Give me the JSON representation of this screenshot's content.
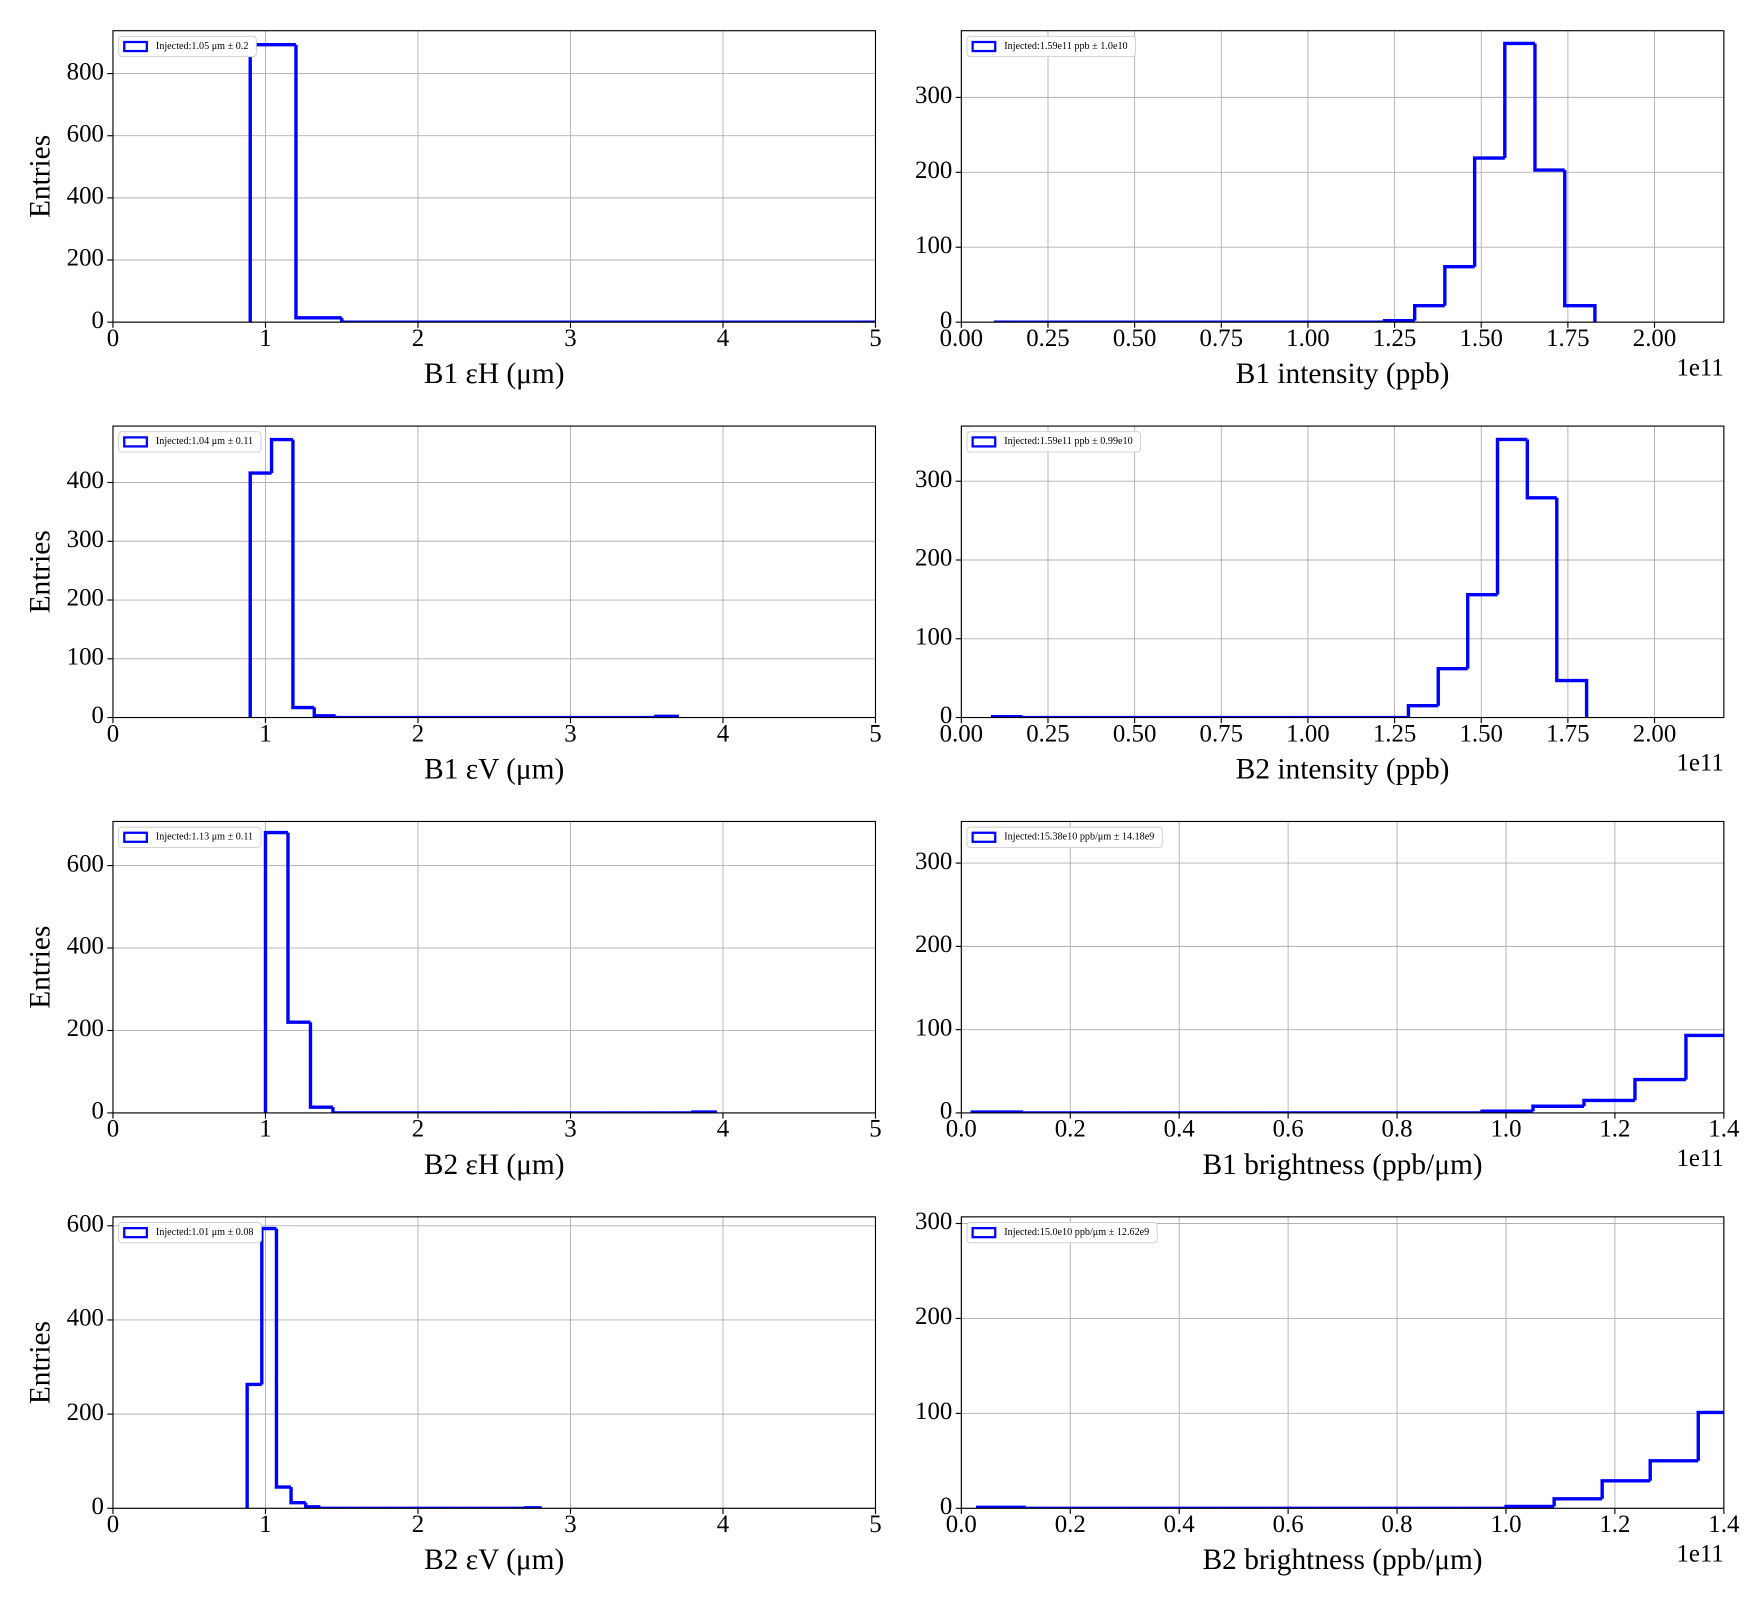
{
  "chart_data": [
    {
      "type": "histogram",
      "xlabel": "B1 εH (μm)",
      "ylabel": "Entries",
      "grid": true,
      "legend": "upper left",
      "xlim": [
        0,
        5
      ],
      "ylim": [
        0,
        938
      ],
      "xticks": [
        0,
        1,
        2,
        3,
        4,
        5
      ],
      "yticks": [
        0,
        200,
        400,
        600,
        800
      ],
      "bins": [
        0.9,
        1.2,
        1.5,
        5.0
      ],
      "series": [
        {
          "name": "Injected:1.05 μm ± 0.2",
          "color": "#0000ff",
          "values": [
            893,
            14,
            0
          ]
        }
      ]
    },
    {
      "type": "histogram",
      "xlabel": "B1 intensity (ppb)",
      "x_offset_label": "1e11",
      "grid": true,
      "legend": "upper left",
      "xlim": [
        0,
        2.2
      ],
      "ylim": [
        0,
        389
      ],
      "xticks": [
        {
          "value": 0,
          "label": "0.00"
        },
        0.25,
        {
          "value": 0.5,
          "label": "0.50"
        },
        0.75,
        {
          "value": 1,
          "label": "1.00"
        },
        1.25,
        {
          "value": 1.5,
          "label": "1.50"
        },
        1.75,
        {
          "value": 2,
          "label": "2.00"
        }
      ],
      "yticks": [
        0,
        100,
        200,
        300
      ],
      "bins": [
        0.094,
        0.181,
        0.267,
        0.354,
        0.441,
        0.528,
        0.614,
        0.701,
        0.788,
        0.874,
        0.961,
        1.048,
        1.134,
        1.221,
        1.308,
        1.395,
        1.481,
        1.568,
        1.655,
        1.741,
        1.828
      ],
      "series": [
        {
          "name": "Injected:1.59e11 ppb ± 1.0e10",
          "color": "#0000ff",
          "values": [
            0,
            0,
            0,
            0,
            0,
            0,
            0,
            0,
            0,
            0,
            0,
            0,
            0,
            2,
            22,
            74,
            219,
            372,
            203,
            22
          ]
        }
      ]
    },
    {
      "type": "histogram",
      "xlabel": "B1 εV (μm)",
      "ylabel": "Entries",
      "grid": true,
      "legend": "upper left",
      "xlim": [
        0,
        5
      ],
      "ylim": [
        0,
        496
      ],
      "xticks": [
        0,
        1,
        2,
        3,
        4,
        5
      ],
      "yticks": [
        0,
        100,
        200,
        300,
        400
      ],
      "bins": [
        0.9,
        1.04,
        1.18,
        1.32,
        1.46,
        1.6,
        1.74,
        1.88,
        2.02,
        2.16,
        2.3,
        2.44,
        2.58,
        2.72,
        2.86,
        3.0,
        3.14,
        3.28,
        3.42,
        3.56,
        3.7
      ],
      "series": [
        {
          "name": "Injected:1.04 μm ± 0.11",
          "color": "#0000ff",
          "values": [
            416,
            473,
            17,
            3,
            0,
            0,
            0,
            0,
            0,
            0,
            0,
            0,
            0,
            0,
            0,
            0,
            0,
            0,
            0,
            2
          ]
        }
      ]
    },
    {
      "type": "histogram",
      "xlabel": "B2 intensity (ppb)",
      "x_offset_label": "1e11",
      "grid": true,
      "legend": "upper left",
      "xlim": [
        0,
        2.2
      ],
      "ylim": [
        0,
        370
      ],
      "xticks": [
        {
          "value": 0,
          "label": "0.00"
        },
        0.25,
        {
          "value": 0.5,
          "label": "0.50"
        },
        0.75,
        {
          "value": 1,
          "label": "1.00"
        },
        1.25,
        {
          "value": 1.5,
          "label": "1.50"
        },
        1.75,
        {
          "value": 2,
          "label": "2.00"
        }
      ],
      "yticks": [
        0,
        100,
        200,
        300
      ],
      "bins": [
        0.09,
        0.176,
        0.261,
        0.347,
        0.433,
        0.519,
        0.604,
        0.69,
        0.776,
        0.861,
        0.947,
        1.033,
        1.118,
        1.204,
        1.29,
        1.376,
        1.461,
        1.547,
        1.633,
        1.718,
        1.804
      ],
      "series": [
        {
          "name": "Injected:1.59e11 ppb ± 0.99e10",
          "color": "#0000ff",
          "values": [
            1,
            0,
            0,
            0,
            0,
            0,
            0,
            0,
            0,
            0,
            0,
            0,
            0,
            0,
            15,
            62,
            156,
            353,
            279,
            47
          ]
        }
      ]
    },
    {
      "type": "histogram",
      "xlabel": "B2 εH (μm)",
      "ylabel": "Entries",
      "grid": true,
      "legend": "upper left",
      "xlim": [
        0,
        5
      ],
      "ylim": [
        0,
        707
      ],
      "xticks": [
        0,
        1,
        2,
        3,
        4,
        5
      ],
      "yticks": [
        0,
        200,
        400,
        600
      ],
      "bins": [
        1.0,
        1.1475,
        1.295,
        1.4425,
        1.59,
        1.7375,
        1.885,
        2.0325,
        2.18,
        2.3275,
        2.475,
        2.6225,
        2.77,
        2.9175,
        3.065,
        3.2125,
        3.36,
        3.5075,
        3.655,
        3.8025,
        3.95
      ],
      "series": [
        {
          "name": "Injected:1.13 μm ± 0.11",
          "color": "#0000ff",
          "values": [
            680,
            220,
            14,
            0,
            0,
            0,
            0,
            0,
            0,
            0,
            0,
            0,
            0,
            0,
            0,
            0,
            0,
            0,
            0,
            2
          ]
        }
      ]
    },
    {
      "type": "histogram",
      "xlabel": "B1 brightness (ppb/μm)",
      "x_offset_label": "1e11",
      "grid": true,
      "legend": "upper left",
      "xlim": [
        0,
        1.4
      ],
      "ylim": [
        0,
        350
      ],
      "xticks": [
        {
          "value": 0,
          "label": "0.0"
        },
        0.2,
        0.4,
        0.6,
        0.8,
        {
          "value": 1,
          "label": "1.0"
        },
        1.2,
        1.4
      ],
      "yticks": [
        0,
        100,
        200,
        300
      ],
      "bins": [
        0.02,
        0.1136,
        0.2072,
        0.3008,
        0.3944,
        0.488,
        0.5816,
        0.6752,
        0.7688,
        0.8624,
        0.956,
        1.0496,
        1.1432,
        1.2368,
        1.3304,
        1.424
      ],
      "series": [
        {
          "name": "Injected:15.38e10 ppb/μm ± 14.18e9",
          "color": "#0000ff",
          "values": [
            1,
            0,
            0,
            0,
            0,
            0,
            0,
            0,
            0,
            0,
            2,
            8,
            15,
            40,
            93
          ]
        }
      ]
    },
    {
      "type": "histogram",
      "xlabel": "B2 εV (μm)",
      "ylabel": "Entries",
      "grid": true,
      "legend": "upper left",
      "xlim": [
        0,
        5
      ],
      "ylim": [
        0,
        619
      ],
      "xticks": [
        0,
        1,
        2,
        3,
        4,
        5
      ],
      "yticks": [
        0,
        200,
        400,
        600
      ],
      "bins": [
        0.88,
        0.976,
        1.072,
        1.168,
        1.264,
        1.36,
        1.456,
        1.552,
        1.648,
        1.744,
        1.84,
        1.936,
        2.032,
        2.128,
        2.224,
        2.32,
        2.416,
        2.512,
        2.608,
        2.704,
        2.8
      ],
      "series": [
        {
          "name": "Injected:1.01 μm ± 0.08",
          "color": "#0000ff",
          "values": [
            263,
            594,
            45,
            12,
            3,
            0,
            0,
            0,
            0,
            0,
            0,
            0,
            0,
            0,
            0,
            0,
            0,
            0,
            0,
            1
          ]
        }
      ]
    },
    {
      "type": "histogram",
      "xlabel": "B2 brightness (ppb/μm)",
      "x_offset_label": "1e11",
      "grid": true,
      "legend": "upper left",
      "xlim": [
        0,
        1.4
      ],
      "ylim": [
        0,
        307
      ],
      "xticks": [
        {
          "value": 0,
          "label": "0.0"
        },
        0.2,
        0.4,
        0.6,
        0.8,
        {
          "value": 1,
          "label": "1.0"
        },
        1.2,
        1.4
      ],
      "yticks": [
        0,
        100,
        200,
        300
      ],
      "bins": [
        0.03,
        0.1182,
        0.2064,
        0.2946,
        0.3828,
        0.471,
        0.5592,
        0.6474,
        0.7356,
        0.8238,
        0.912,
        1.0002,
        1.0884,
        1.1766,
        1.2648,
        1.353,
        1.4412
      ],
      "series": [
        {
          "name": "Injected:15.0e10 ppb/μm ± 12.62e9",
          "color": "#0000ff",
          "values": [
            1,
            0,
            0,
            0,
            0,
            0,
            0,
            0,
            0,
            0,
            0,
            2,
            10,
            29,
            50,
            101
          ]
        }
      ]
    }
  ]
}
